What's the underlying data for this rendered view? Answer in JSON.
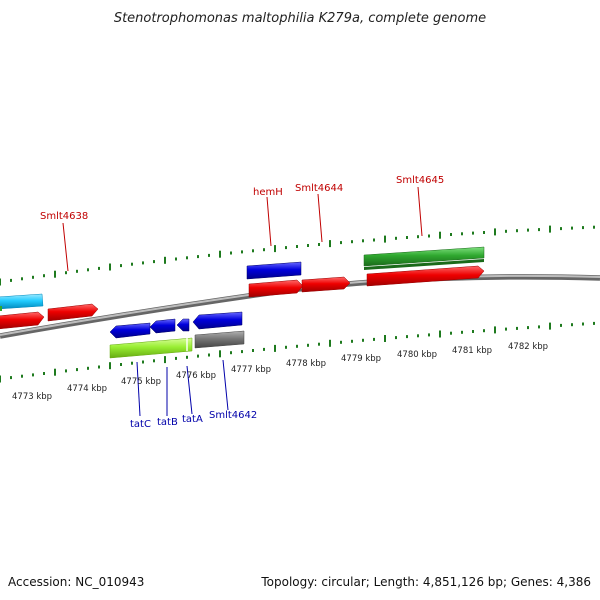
{
  "title": "Stenotrophomonas maltophilia K279a, complete genome",
  "footer": {
    "accession": "Accession: NC_010943",
    "summary": "Topology: circular; Length: 4,851,126 bp; Genes: 4,386"
  },
  "colors": {
    "forward_label": "#c00000",
    "reverse_label": "#0000aa",
    "tick": "#1e7a1e",
    "backbone": "#8a8a8a"
  },
  "scale_labels": [
    "4773 kbp",
    "4774 kbp",
    "4775 kbp",
    "4776 kbp",
    "4777 kbp",
    "4778 kbp",
    "4779 kbp",
    "4780 kbp",
    "4781 kbp",
    "4782 kbp"
  ],
  "gene_labels": [
    {
      "id": "smlt4638",
      "text": "Smlt4638",
      "strand": "forward"
    },
    {
      "id": "hemh",
      "text": "hemH",
      "strand": "forward"
    },
    {
      "id": "smlt4644",
      "text": "Smlt4644",
      "strand": "forward"
    },
    {
      "id": "smlt4645",
      "text": "Smlt4645",
      "strand": "forward"
    },
    {
      "id": "tatc",
      "text": "tatC",
      "strand": "reverse"
    },
    {
      "id": "tatb",
      "text": "tatB",
      "strand": "reverse"
    },
    {
      "id": "tata",
      "text": "tatA",
      "strand": "reverse"
    },
    {
      "id": "smlt4642",
      "text": "Smlt4642",
      "strand": "reverse"
    }
  ]
}
